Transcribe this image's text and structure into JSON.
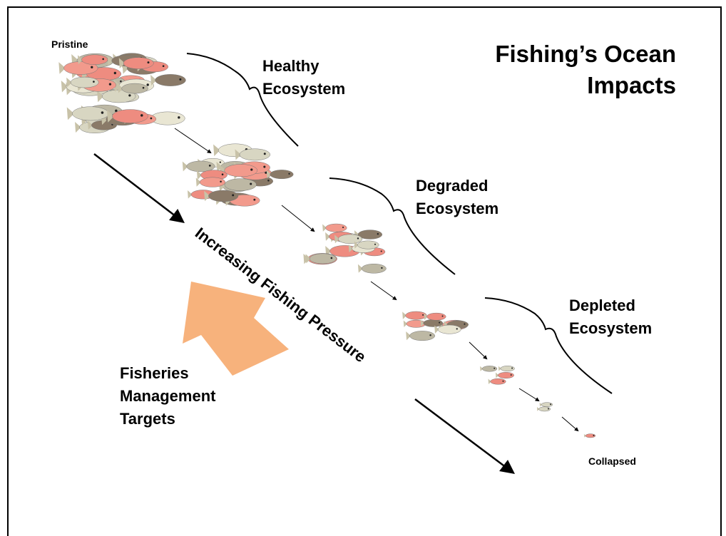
{
  "title": {
    "lines": [
      "Fishing’s Ocean",
      "Impacts"
    ]
  },
  "stages": {
    "pristine": "Pristine",
    "collapsed": "Collapsed"
  },
  "ecosystems": [
    {
      "lines": [
        "Healthy",
        "Ecosystem"
      ]
    },
    {
      "lines": [
        "Degraded",
        "Ecosystem"
      ]
    },
    {
      "lines": [
        "Depleted",
        "Ecosystem"
      ]
    }
  ],
  "pressure": "Increasing Fishing Pressure",
  "targets": {
    "lines": [
      "Fisheries",
      "Management",
      "Targets"
    ]
  }
}
